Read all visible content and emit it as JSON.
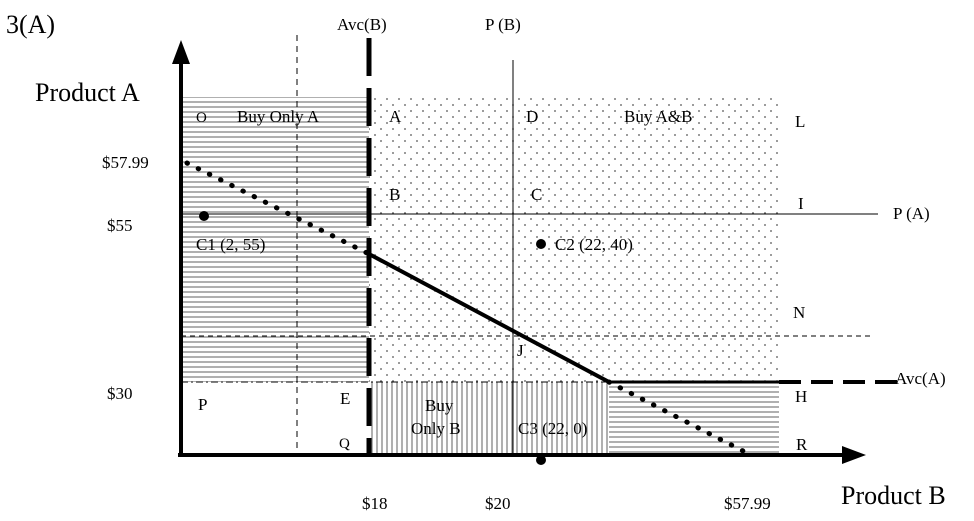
{
  "figure_label": "3(A)",
  "axes": {
    "y_title": "Product A",
    "x_title": "Product B",
    "y_ticks": [
      "$57.99",
      "$55",
      "$30"
    ],
    "x_ticks": [
      "$18",
      "$20",
      "$57.99"
    ]
  },
  "line_labels": {
    "avc_b": "Avc(B)",
    "p_b": "P (B)",
    "p_a": "P (A)",
    "avc_a": "Avc(A)"
  },
  "region_labels": {
    "buy_only_a": "Buy Only A",
    "buy_a_b": "Buy A&B",
    "buy_only_b_line1": "Buy",
    "buy_only_b_line2": "Only  B"
  },
  "point_letters": [
    "O",
    "A",
    "D",
    "L",
    "B",
    "C",
    "I",
    "N",
    "J",
    "P",
    "E",
    "H",
    "Q",
    "R"
  ],
  "consumers": [
    {
      "label": "C1 (2, 55)",
      "x": 2,
      "y": 55
    },
    {
      "label": "C2 (22, 40)",
      "x": 22,
      "y": 40
    },
    {
      "label": "C3 (22, 0)",
      "x": 22,
      "y": 0
    }
  ]
}
